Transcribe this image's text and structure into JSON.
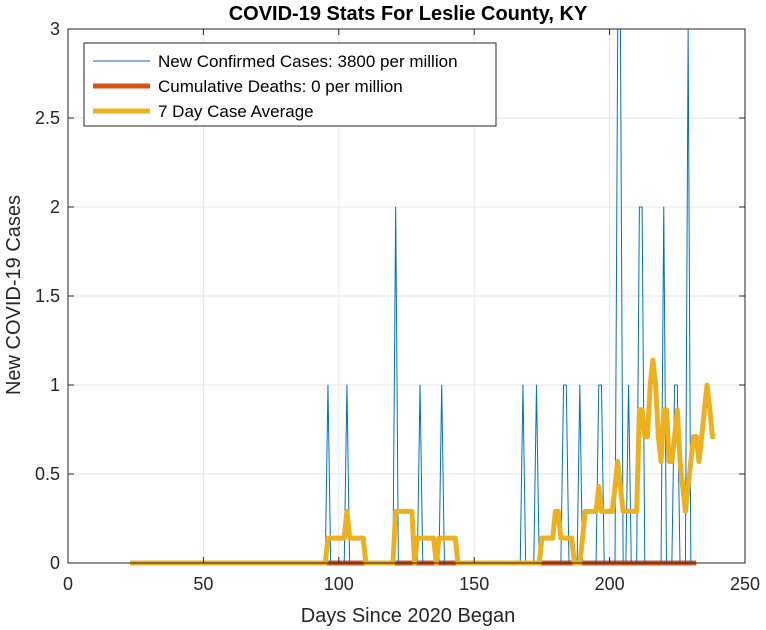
{
  "chart_data": {
    "type": "line",
    "title": "COVID-19 Stats For Leslie County, KY",
    "xlabel": "Days Since 2020 Began",
    "ylabel": "New COVID-19 Cases",
    "xlim": [
      0,
      250
    ],
    "ylim": [
      0,
      3
    ],
    "xticks": [
      0,
      50,
      100,
      150,
      200,
      250
    ],
    "xtick_labels": [
      "0",
      "50",
      "100",
      "150",
      "200",
      "250"
    ],
    "yticks": [
      0,
      0.5,
      1,
      1.5,
      2,
      2.5,
      3
    ],
    "ytick_labels": [
      "0",
      "0.5",
      "1",
      "1.5",
      "2",
      "2.5",
      "3"
    ],
    "grid": true,
    "legend_position": "top-left",
    "colors": {
      "cases": "#0072BD",
      "deaths": "#D95319",
      "avg": "#EDB120",
      "grid": "#e6e6e6",
      "axis": "#262626"
    },
    "x_start": 23,
    "series": [
      {
        "name": "New Confirmed Cases: 3800 per million",
        "values": [
          0,
          0,
          0,
          0,
          0,
          0,
          0,
          0,
          0,
          0,
          0,
          0,
          0,
          0,
          0,
          0,
          0,
          0,
          0,
          0,
          0,
          0,
          0,
          0,
          0,
          0,
          0,
          0,
          0,
          0,
          0,
          0,
          0,
          0,
          0,
          0,
          0,
          0,
          0,
          0,
          0,
          0,
          0,
          0,
          0,
          0,
          0,
          0,
          0,
          0,
          0,
          0,
          0,
          0,
          0,
          0,
          0,
          0,
          0,
          0,
          0,
          0,
          0,
          0,
          0,
          0,
          0,
          0,
          0,
          0,
          0,
          0,
          0,
          1,
          0,
          0,
          0,
          0,
          0,
          0,
          1,
          0,
          0,
          0,
          0,
          0,
          0,
          0,
          0,
          0,
          0,
          0,
          0,
          0,
          0,
          0,
          0,
          0,
          2,
          0,
          0,
          0,
          0,
          0,
          0,
          0,
          0,
          1,
          0,
          0,
          0,
          0,
          0,
          0,
          0,
          1,
          0,
          0,
          0,
          0,
          0,
          0,
          0,
          0,
          0,
          0,
          0,
          0,
          0,
          0,
          0,
          0,
          0,
          0,
          0,
          0,
          0,
          0,
          0,
          0,
          0,
          0,
          0,
          0,
          0,
          1,
          0,
          0,
          0,
          0,
          1,
          0,
          0,
          0,
          0,
          0,
          0,
          0,
          0,
          0,
          1,
          1,
          0,
          0,
          0,
          0,
          1,
          0,
          0,
          0,
          0,
          0,
          0,
          1,
          1,
          0,
          0,
          0,
          0,
          0,
          3,
          3,
          0,
          0,
          1,
          0,
          0,
          0,
          2,
          2,
          0,
          0,
          0,
          0,
          0,
          0,
          0,
          2,
          0,
          0,
          0,
          1,
          1,
          0,
          0,
          0,
          3,
          0,
          0
        ]
      },
      {
        "name": "Cumulative Deaths: 0 per million",
        "values": [
          0,
          0,
          0,
          0,
          0,
          0,
          0,
          0,
          0,
          0,
          0,
          0,
          0,
          0,
          0,
          0,
          0,
          0,
          0,
          0,
          0,
          0,
          0,
          0,
          0,
          0,
          0,
          0,
          0,
          0,
          0,
          0,
          0,
          0,
          0,
          0,
          0,
          0,
          0,
          0,
          0,
          0,
          0,
          0,
          0,
          0,
          0,
          0,
          0,
          0,
          0,
          0,
          0,
          0,
          0,
          0,
          0,
          0,
          0,
          0,
          0,
          0,
          0,
          0,
          0,
          0,
          0,
          0,
          0,
          0,
          0,
          0,
          0,
          0,
          0,
          0,
          0,
          0,
          0,
          0,
          0,
          0,
          0,
          0,
          0,
          0,
          0,
          0,
          0,
          0,
          0,
          0,
          0,
          0,
          0,
          0,
          0,
          0,
          0,
          0,
          0,
          0,
          0,
          0,
          0,
          0,
          0,
          0,
          0,
          0,
          0,
          0,
          0,
          0,
          0,
          0,
          0,
          0,
          0,
          0,
          0,
          0,
          0,
          0,
          0,
          0,
          0,
          0,
          0,
          0,
          0,
          0,
          0,
          0,
          0,
          0,
          0,
          0,
          0,
          0,
          0,
          0,
          0,
          0,
          0,
          0,
          0,
          0,
          0,
          0,
          0,
          0,
          0,
          0,
          0,
          0,
          0,
          0,
          0,
          0,
          0,
          0,
          0,
          0,
          0,
          0,
          0,
          0,
          0,
          0,
          0,
          0,
          0,
          0,
          0,
          0,
          0,
          0,
          0,
          0,
          0,
          0,
          0,
          0,
          0,
          0,
          0,
          0,
          0,
          0,
          0,
          0,
          0,
          0,
          0,
          0,
          0,
          0,
          0,
          0,
          0,
          0,
          0,
          0,
          0,
          0,
          0,
          0,
          0,
          0
        ]
      },
      {
        "name": "7 Day Case Average",
        "values": [
          0,
          0,
          0,
          0,
          0,
          0,
          0,
          0,
          0,
          0,
          0,
          0,
          0,
          0,
          0,
          0,
          0,
          0,
          0,
          0,
          0,
          0,
          0,
          0,
          0,
          0,
          0,
          0,
          0,
          0,
          0,
          0,
          0,
          0,
          0,
          0,
          0,
          0,
          0,
          0,
          0,
          0,
          0,
          0,
          0,
          0,
          0,
          0,
          0,
          0,
          0,
          0,
          0,
          0,
          0,
          0,
          0,
          0,
          0,
          0,
          0,
          0,
          0,
          0,
          0,
          0,
          0,
          0,
          0,
          0,
          0,
          0,
          0,
          0.14,
          0.14,
          0.14,
          0.14,
          0.14,
          0.14,
          0.14,
          0.29,
          0.14,
          0.14,
          0.14,
          0.14,
          0.14,
          0.14,
          0,
          0,
          0,
          0,
          0,
          0,
          0,
          0,
          0,
          0,
          0,
          0.29,
          0.29,
          0.29,
          0.29,
          0.29,
          0.29,
          0.29,
          0,
          0.14,
          0.14,
          0.14,
          0.14,
          0.14,
          0.14,
          0.14,
          0,
          0.14,
          0.14,
          0.14,
          0.14,
          0.14,
          0.14,
          0.14,
          0,
          0,
          0,
          0,
          0,
          0,
          0,
          0,
          0,
          0,
          0,
          0,
          0,
          0,
          0,
          0,
          0,
          0,
          0,
          0,
          0,
          0,
          0,
          0,
          0,
          0,
          0,
          0,
          0,
          0,
          0,
          0.14,
          0.14,
          0.14,
          0.14,
          0.14,
          0.29,
          0.29,
          0.14,
          0.14,
          0.14,
          0.14,
          0.14,
          0,
          0,
          0,
          0.14,
          0.29,
          0.29,
          0.29,
          0.29,
          0.29,
          0.43,
          0.29,
          0.29,
          0.29,
          0.29,
          0.29,
          0.43,
          0.57,
          0.43,
          0.29,
          0.29,
          0.29,
          0.29,
          0.29,
          0.29,
          0.86,
          0.86,
          0.71,
          0.71,
          1.0,
          1.14,
          1.0,
          0.71,
          0.57,
          0.86,
          0.86,
          0.57,
          0.57,
          0.71,
          0.86,
          0.57,
          0.43,
          0.29,
          0.43,
          0.57,
          0.71,
          0.71,
          0.57,
          0.71,
          0.86,
          1.0,
          0.86,
          0.71,
          0.71
        ]
      }
    ]
  }
}
